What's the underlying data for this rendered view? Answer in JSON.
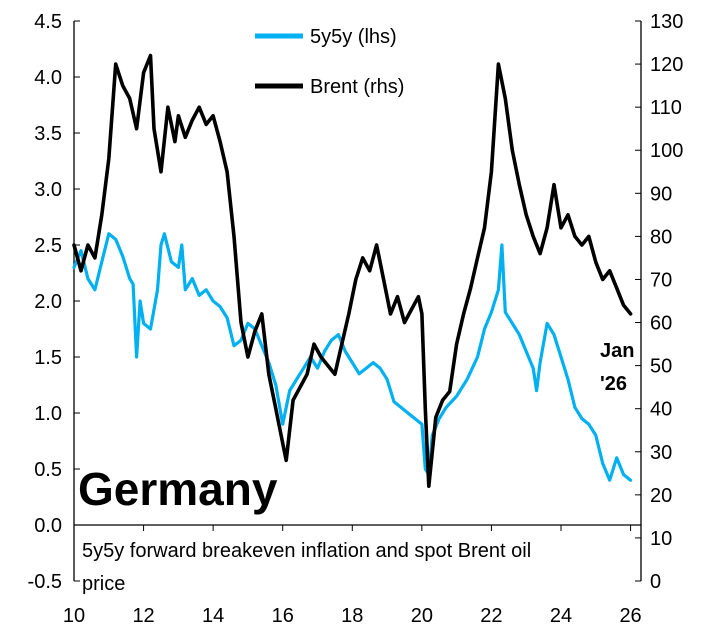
{
  "chart_data": {
    "type": "line",
    "title": "Germany",
    "caption_lines": [
      "5y5y forward breakeven inflation and spot Brent oil",
      "price"
    ],
    "end_label_lines": [
      "Jan",
      "'26"
    ],
    "x_axis": {
      "range": [
        10,
        26.3
      ],
      "ticks": [
        "10",
        "12",
        "14",
        "16",
        "18",
        "20",
        "22",
        "24",
        "26"
      ],
      "tick_values": [
        10,
        12,
        14,
        16,
        18,
        20,
        22,
        24,
        26
      ]
    },
    "y_left": {
      "range": [
        -0.5,
        4.5
      ],
      "ticks": [
        "-0.5",
        "0.0",
        "0.5",
        "1.0",
        "1.5",
        "2.0",
        "2.5",
        "3.0",
        "3.5",
        "4.0",
        "4.5"
      ],
      "tick_values": [
        -0.5,
        0,
        0.5,
        1,
        1.5,
        2,
        2.5,
        3,
        3.5,
        4,
        4.5
      ]
    },
    "y_right": {
      "range": [
        0,
        130
      ],
      "ticks": [
        "0",
        "10",
        "20",
        "30",
        "40",
        "50",
        "60",
        "70",
        "80",
        "90",
        "100",
        "110",
        "120",
        "130"
      ],
      "tick_values": [
        0,
        10,
        20,
        30,
        40,
        50,
        60,
        70,
        80,
        90,
        100,
        110,
        120,
        130
      ]
    },
    "legend_position": "top-center",
    "grid": false,
    "series": [
      {
        "name": "5y5y (lhs)",
        "axis": "left",
        "color": "#00b0f0",
        "points": [
          [
            10.0,
            2.3
          ],
          [
            10.2,
            2.45
          ],
          [
            10.4,
            2.2
          ],
          [
            10.6,
            2.1
          ],
          [
            10.8,
            2.35
          ],
          [
            11.0,
            2.6
          ],
          [
            11.2,
            2.55
          ],
          [
            11.4,
            2.4
          ],
          [
            11.6,
            2.2
          ],
          [
            11.7,
            2.15
          ],
          [
            11.8,
            1.5
          ],
          [
            11.9,
            2.0
          ],
          [
            12.0,
            1.8
          ],
          [
            12.2,
            1.75
          ],
          [
            12.4,
            2.1
          ],
          [
            12.5,
            2.5
          ],
          [
            12.6,
            2.6
          ],
          [
            12.8,
            2.35
          ],
          [
            13.0,
            2.3
          ],
          [
            13.1,
            2.5
          ],
          [
            13.2,
            2.1
          ],
          [
            13.4,
            2.2
          ],
          [
            13.6,
            2.05
          ],
          [
            13.8,
            2.1
          ],
          [
            14.0,
            2.0
          ],
          [
            14.2,
            1.95
          ],
          [
            14.4,
            1.85
          ],
          [
            14.6,
            1.6
          ],
          [
            14.8,
            1.65
          ],
          [
            15.0,
            1.8
          ],
          [
            15.2,
            1.75
          ],
          [
            15.4,
            1.6
          ],
          [
            15.6,
            1.45
          ],
          [
            15.8,
            1.25
          ],
          [
            16.0,
            0.9
          ],
          [
            16.2,
            1.2
          ],
          [
            16.4,
            1.3
          ],
          [
            16.6,
            1.4
          ],
          [
            16.8,
            1.5
          ],
          [
            17.0,
            1.4
          ],
          [
            17.2,
            1.55
          ],
          [
            17.4,
            1.65
          ],
          [
            17.6,
            1.7
          ],
          [
            17.8,
            1.55
          ],
          [
            18.0,
            1.45
          ],
          [
            18.2,
            1.35
          ],
          [
            18.4,
            1.4
          ],
          [
            18.6,
            1.45
          ],
          [
            18.8,
            1.4
          ],
          [
            19.0,
            1.3
          ],
          [
            19.2,
            1.1
          ],
          [
            19.4,
            1.05
          ],
          [
            19.6,
            1.0
          ],
          [
            19.8,
            0.95
          ],
          [
            20.0,
            0.9
          ],
          [
            20.1,
            0.5
          ],
          [
            20.2,
            0.45
          ],
          [
            20.3,
            0.8
          ],
          [
            20.5,
            0.95
          ],
          [
            20.7,
            1.05
          ],
          [
            21.0,
            1.15
          ],
          [
            21.3,
            1.3
          ],
          [
            21.6,
            1.5
          ],
          [
            21.8,
            1.75
          ],
          [
            22.0,
            1.9
          ],
          [
            22.2,
            2.1
          ],
          [
            22.3,
            2.5
          ],
          [
            22.4,
            1.9
          ],
          [
            22.6,
            1.8
          ],
          [
            22.8,
            1.7
          ],
          [
            23.0,
            1.55
          ],
          [
            23.2,
            1.4
          ],
          [
            23.3,
            1.2
          ],
          [
            23.4,
            1.45
          ],
          [
            23.6,
            1.8
          ],
          [
            23.8,
            1.7
          ],
          [
            24.0,
            1.5
          ],
          [
            24.2,
            1.3
          ],
          [
            24.4,
            1.05
          ],
          [
            24.6,
            0.95
          ],
          [
            24.8,
            0.9
          ],
          [
            25.0,
            0.8
          ],
          [
            25.2,
            0.55
          ],
          [
            25.4,
            0.4
          ],
          [
            25.6,
            0.6
          ],
          [
            25.8,
            0.45
          ],
          [
            26.0,
            0.4
          ]
        ]
      },
      {
        "name": "Brent (rhs)",
        "axis": "right",
        "color": "#000000",
        "points": [
          [
            10.0,
            78
          ],
          [
            10.2,
            72
          ],
          [
            10.4,
            78
          ],
          [
            10.6,
            75
          ],
          [
            10.8,
            85
          ],
          [
            11.0,
            98
          ],
          [
            11.2,
            120
          ],
          [
            11.4,
            115
          ],
          [
            11.6,
            112
          ],
          [
            11.8,
            105
          ],
          [
            12.0,
            118
          ],
          [
            12.2,
            122
          ],
          [
            12.3,
            105
          ],
          [
            12.5,
            95
          ],
          [
            12.7,
            110
          ],
          [
            12.9,
            102
          ],
          [
            13.0,
            108
          ],
          [
            13.2,
            103
          ],
          [
            13.4,
            107
          ],
          [
            13.6,
            110
          ],
          [
            13.8,
            106
          ],
          [
            14.0,
            108
          ],
          [
            14.2,
            102
          ],
          [
            14.4,
            95
          ],
          [
            14.6,
            80
          ],
          [
            14.8,
            60
          ],
          [
            15.0,
            52
          ],
          [
            15.2,
            58
          ],
          [
            15.4,
            62
          ],
          [
            15.6,
            48
          ],
          [
            15.8,
            40
          ],
          [
            16.0,
            32
          ],
          [
            16.1,
            28
          ],
          [
            16.3,
            42
          ],
          [
            16.5,
            45
          ],
          [
            16.7,
            48
          ],
          [
            16.9,
            55
          ],
          [
            17.1,
            52
          ],
          [
            17.3,
            50
          ],
          [
            17.5,
            48
          ],
          [
            17.7,
            55
          ],
          [
            17.9,
            62
          ],
          [
            18.1,
            70
          ],
          [
            18.3,
            75
          ],
          [
            18.5,
            72
          ],
          [
            18.7,
            78
          ],
          [
            18.9,
            70
          ],
          [
            19.1,
            62
          ],
          [
            19.3,
            66
          ],
          [
            19.5,
            60
          ],
          [
            19.7,
            63
          ],
          [
            19.9,
            66
          ],
          [
            20.0,
            62
          ],
          [
            20.1,
            40
          ],
          [
            20.2,
            22
          ],
          [
            20.4,
            38
          ],
          [
            20.6,
            42
          ],
          [
            20.8,
            44
          ],
          [
            21.0,
            55
          ],
          [
            21.2,
            62
          ],
          [
            21.4,
            68
          ],
          [
            21.6,
            75
          ],
          [
            21.8,
            82
          ],
          [
            22.0,
            95
          ],
          [
            22.2,
            120
          ],
          [
            22.4,
            112
          ],
          [
            22.6,
            100
          ],
          [
            22.8,
            92
          ],
          [
            23.0,
            85
          ],
          [
            23.2,
            80
          ],
          [
            23.4,
            76
          ],
          [
            23.6,
            82
          ],
          [
            23.8,
            92
          ],
          [
            24.0,
            82
          ],
          [
            24.2,
            85
          ],
          [
            24.4,
            80
          ],
          [
            24.6,
            78
          ],
          [
            24.8,
            80
          ],
          [
            25.0,
            74
          ],
          [
            25.2,
            70
          ],
          [
            25.4,
            72
          ],
          [
            25.6,
            68
          ],
          [
            25.8,
            64
          ],
          [
            26.0,
            62
          ]
        ]
      }
    ]
  }
}
